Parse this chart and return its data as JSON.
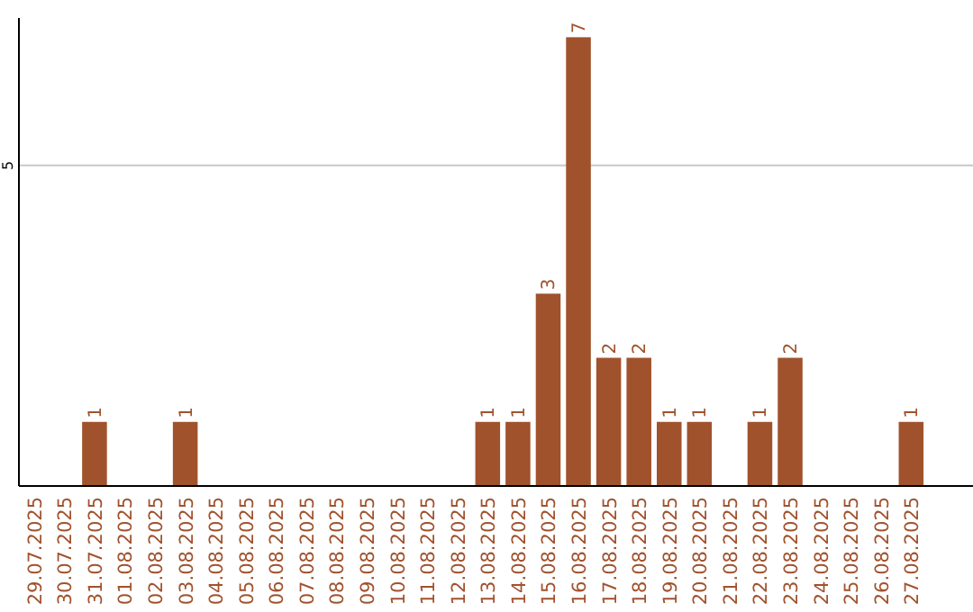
{
  "chart_data": {
    "type": "bar",
    "categories": [
      "29.07.2025",
      "30.07.2025",
      "31.07.2025",
      "01.08.2025",
      "02.08.2025",
      "03.08.2025",
      "04.08.2025",
      "05.08.2025",
      "06.08.2025",
      "07.08.2025",
      "08.08.2025",
      "09.08.2025",
      "10.08.2025",
      "11.08.2025",
      "12.08.2025",
      "13.08.2025",
      "14.08.2025",
      "15.08.2025",
      "16.08.2025",
      "17.08.2025",
      "18.08.2025",
      "19.08.2025",
      "20.08.2025",
      "21.08.2025",
      "22.08.2025",
      "23.08.2025",
      "24.08.2025",
      "25.08.2025",
      "26.08.2025",
      "27.08.2025"
    ],
    "values": [
      0,
      0,
      1,
      0,
      0,
      1,
      0,
      0,
      0,
      0,
      0,
      0,
      0,
      0,
      0,
      1,
      1,
      3,
      7,
      2,
      2,
      1,
      1,
      0,
      1,
      2,
      0,
      0,
      0,
      1
    ],
    "value_labels": [
      null,
      null,
      "1",
      null,
      null,
      "1",
      null,
      null,
      null,
      null,
      null,
      null,
      null,
      null,
      null,
      "1",
      "1",
      "3",
      "7",
      "2",
      "2",
      "1",
      "1",
      null,
      "1",
      "2",
      null,
      null,
      null,
      "1"
    ],
    "color": "#a0522d",
    "ylim": [
      0,
      7.3
    ],
    "yticks": [
      5
    ],
    "grid": "y"
  }
}
